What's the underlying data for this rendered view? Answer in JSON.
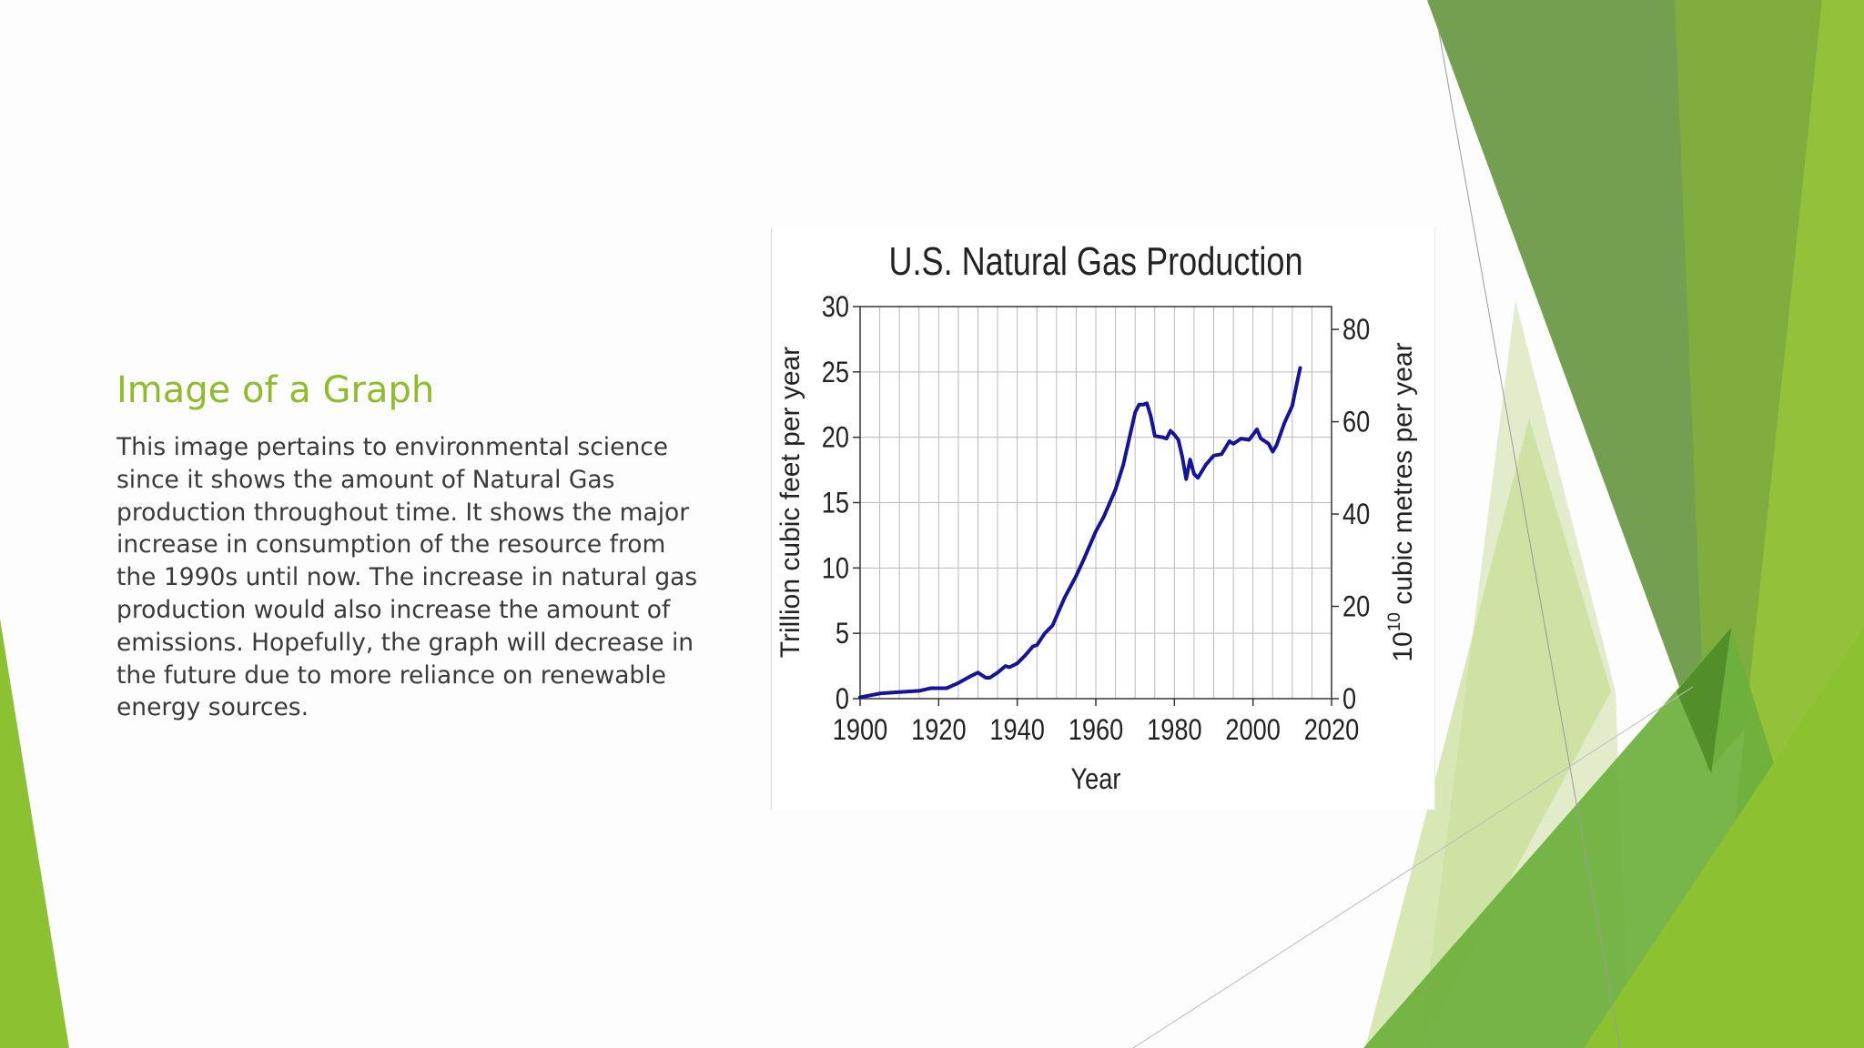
{
  "slide": {
    "title": "Image of a Graph",
    "body": "This image pertains to environmental science since it shows the amount of Natural Gas production throughout time. It shows the major increase in consumption of the resource from the 1990s until now. The increase in natural gas production would also increase the amount of emissions. Hopefully, the graph will decrease in the future due to more reliance on renewable energy sources."
  },
  "theme": {
    "title_color": "#8fbc2b",
    "body_color": "#3a3a3a",
    "accent_greens": [
      "#6d9a48",
      "#7fae3e",
      "#93c23a",
      "#dfeac4",
      "#4f8a24"
    ],
    "line_color": "#14149a"
  },
  "chart_data": {
    "type": "line",
    "title": "U.S. Natural Gas Production",
    "xlabel": "Year",
    "ylabel": "Trillion cubic feet per year",
    "y2label_base": "10",
    "y2label_exp": "10",
    "y2label_rest": " cubic metres per year",
    "xlim": [
      1900,
      2020
    ],
    "ylim": [
      0,
      30
    ],
    "y2lim": [
      0,
      84.95
    ],
    "xticks": [
      1900,
      1920,
      1940,
      1960,
      1980,
      2000,
      2020
    ],
    "yticks": [
      0,
      5,
      10,
      15,
      20,
      25,
      30
    ],
    "y2ticks": [
      0,
      20,
      40,
      60,
      80
    ],
    "grid": true,
    "series": [
      {
        "name": "U.S. natural gas production",
        "x": [
          1900,
          1905,
          1910,
          1915,
          1918,
          1920,
          1922,
          1925,
          1928,
          1930,
          1932,
          1933,
          1935,
          1937,
          1938,
          1940,
          1942,
          1944,
          1945,
          1947,
          1949,
          1950,
          1952,
          1955,
          1957,
          1960,
          1962,
          1965,
          1967,
          1970,
          1971,
          1972,
          1973,
          1974,
          1975,
          1977,
          1978,
          1979,
          1980,
          1981,
          1982,
          1983,
          1984,
          1985,
          1986,
          1988,
          1990,
          1992,
          1994,
          1995,
          1997,
          1999,
          2000,
          2001,
          2002,
          2004,
          2005,
          2006,
          2008,
          2010,
          2011,
          2012
        ],
        "values": [
          0.1,
          0.4,
          0.5,
          0.6,
          0.8,
          0.8,
          0.8,
          1.2,
          1.7,
          2.0,
          1.6,
          1.6,
          2.0,
          2.5,
          2.4,
          2.7,
          3.3,
          4.0,
          4.1,
          5.0,
          5.6,
          6.3,
          7.7,
          9.4,
          10.7,
          12.8,
          13.9,
          16.0,
          17.9,
          21.9,
          22.5,
          22.5,
          22.6,
          21.6,
          20.1,
          20.0,
          19.9,
          20.5,
          20.2,
          19.8,
          18.5,
          16.8,
          18.3,
          17.2,
          16.9,
          17.9,
          18.6,
          18.7,
          19.7,
          19.5,
          19.9,
          19.8,
          20.2,
          20.6,
          19.9,
          19.5,
          18.9,
          19.4,
          21.1,
          22.4,
          23.9,
          25.3
        ]
      }
    ]
  }
}
